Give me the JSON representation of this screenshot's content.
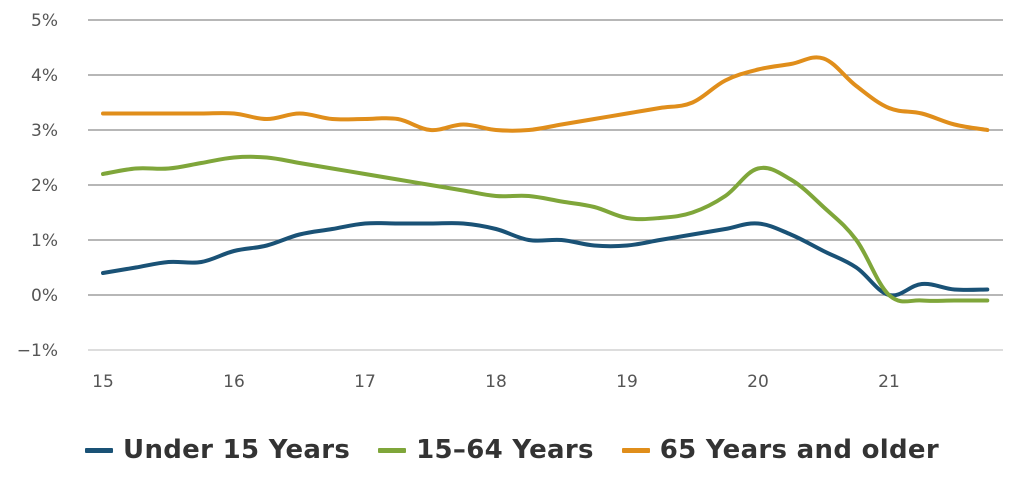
{
  "chart_data": {
    "type": "line",
    "title": "",
    "xlabel": "",
    "ylabel": "",
    "xlim": [
      15,
      21.75
    ],
    "ylim": [
      -1,
      5
    ],
    "grid": true,
    "legend_position": "bottom",
    "x_ticks": [
      {
        "value": 15,
        "label": "15"
      },
      {
        "value": 16,
        "label": "16"
      },
      {
        "value": 17,
        "label": "17"
      },
      {
        "value": 18,
        "label": "18"
      },
      {
        "value": 19,
        "label": "19"
      },
      {
        "value": 20,
        "label": "20"
      },
      {
        "value": 21,
        "label": "21"
      }
    ],
    "y_ticks": [
      {
        "value": -1,
        "label": "−1%"
      },
      {
        "value": 0,
        "label": "0%"
      },
      {
        "value": 1,
        "label": "1%"
      },
      {
        "value": 2,
        "label": "2%"
      },
      {
        "value": 3,
        "label": "3%"
      },
      {
        "value": 4,
        "label": "4%"
      },
      {
        "value": 5,
        "label": "5%"
      }
    ],
    "x": [
      15.0,
      15.25,
      15.5,
      15.75,
      16.0,
      16.25,
      16.5,
      16.75,
      17.0,
      17.25,
      17.5,
      17.75,
      18.0,
      18.25,
      18.5,
      18.75,
      19.0,
      19.25,
      19.5,
      19.75,
      20.0,
      20.25,
      20.5,
      20.75,
      21.0,
      21.25,
      21.5,
      21.75
    ],
    "series": [
      {
        "name": "Under 15 Years",
        "color": "#1a5276",
        "values": [
          0.4,
          0.5,
          0.6,
          0.6,
          0.8,
          0.9,
          1.1,
          1.2,
          1.3,
          1.3,
          1.3,
          1.3,
          1.2,
          1.0,
          1.0,
          0.9,
          0.9,
          1.0,
          1.1,
          1.2,
          1.3,
          1.1,
          0.8,
          0.5,
          0.0,
          0.2,
          0.1,
          0.1
        ]
      },
      {
        "name": "15–64 Years",
        "color": "#7fa63a",
        "values": [
          2.2,
          2.3,
          2.3,
          2.4,
          2.5,
          2.5,
          2.4,
          2.3,
          2.2,
          2.1,
          2.0,
          1.9,
          1.8,
          1.8,
          1.7,
          1.6,
          1.4,
          1.4,
          1.5,
          1.8,
          2.3,
          2.1,
          1.6,
          1.0,
          0.0,
          -0.1,
          -0.1,
          -0.1
        ]
      },
      {
        "name": "65 Years and older",
        "color": "#e08e1b",
        "values": [
          3.3,
          3.3,
          3.3,
          3.3,
          3.3,
          3.2,
          3.3,
          3.2,
          3.2,
          3.2,
          3.0,
          3.1,
          3.0,
          3.0,
          3.1,
          3.2,
          3.3,
          3.4,
          3.5,
          3.9,
          4.1,
          4.2,
          4.3,
          3.8,
          3.4,
          3.3,
          3.1,
          3.0
        ]
      }
    ]
  }
}
